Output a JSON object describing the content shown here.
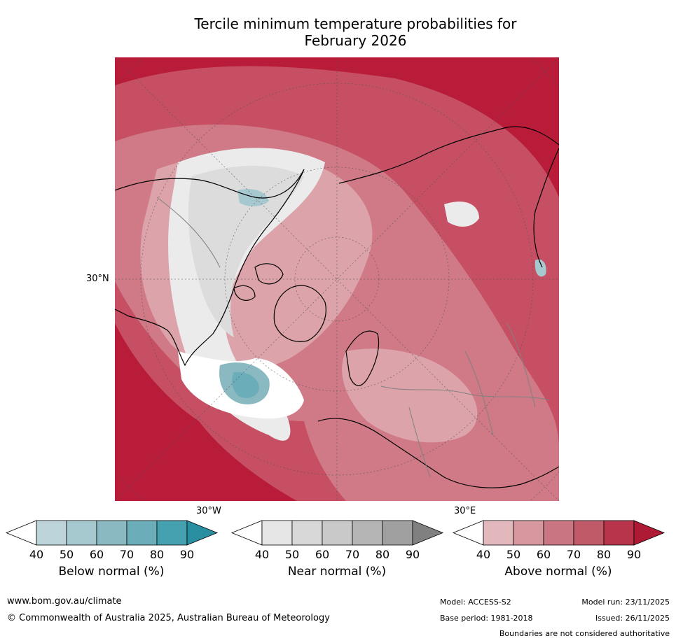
{
  "title_line1": "Tercile minimum temperature probabilities for",
  "title_line2": "February 2026",
  "map": {
    "lat_label": "30°N",
    "lon_label_left": "30°W",
    "lon_label_right": "30°E",
    "ocean_color": "#c04a5c",
    "coast_color": "#000000",
    "border_color": "#808080"
  },
  "colorbars": [
    {
      "label": "Below normal (%)",
      "ticks": [
        "40",
        "50",
        "60",
        "70",
        "80",
        "90"
      ],
      "colors": [
        "#ffffff",
        "#bcd4da",
        "#a6c9cf",
        "#8ab9c2",
        "#6badb9",
        "#45a1b0",
        "#2a8ea1"
      ]
    },
    {
      "label": "Near normal (%)",
      "ticks": [
        "40",
        "50",
        "60",
        "70",
        "80",
        "90"
      ],
      "colors": [
        "#ffffff",
        "#e6e6e6",
        "#d8d8d8",
        "#c9c9c9",
        "#b5b5b5",
        "#a0a0a0",
        "#808080"
      ]
    },
    {
      "label": "Above normal (%)",
      "ticks": [
        "40",
        "50",
        "60",
        "70",
        "80",
        "90"
      ],
      "colors": [
        "#ffffff",
        "#e3b8bd",
        "#d7979e",
        "#ca7682",
        "#c05a68",
        "#b8344a",
        "#ae1a33"
      ]
    }
  ],
  "footer": {
    "website": "www.bom.gov.au/climate",
    "copyright": "© Commonwealth of Australia 2025, Australian Bureau of Meteorology",
    "model": "Model: ACCESS-S2",
    "base_period": "Base period: 1981-2018",
    "model_run": "Model run: 23/11/2025",
    "issued": "Issued: 26/11/2025",
    "disclaimer": "Boundaries are not considered authoritative"
  }
}
